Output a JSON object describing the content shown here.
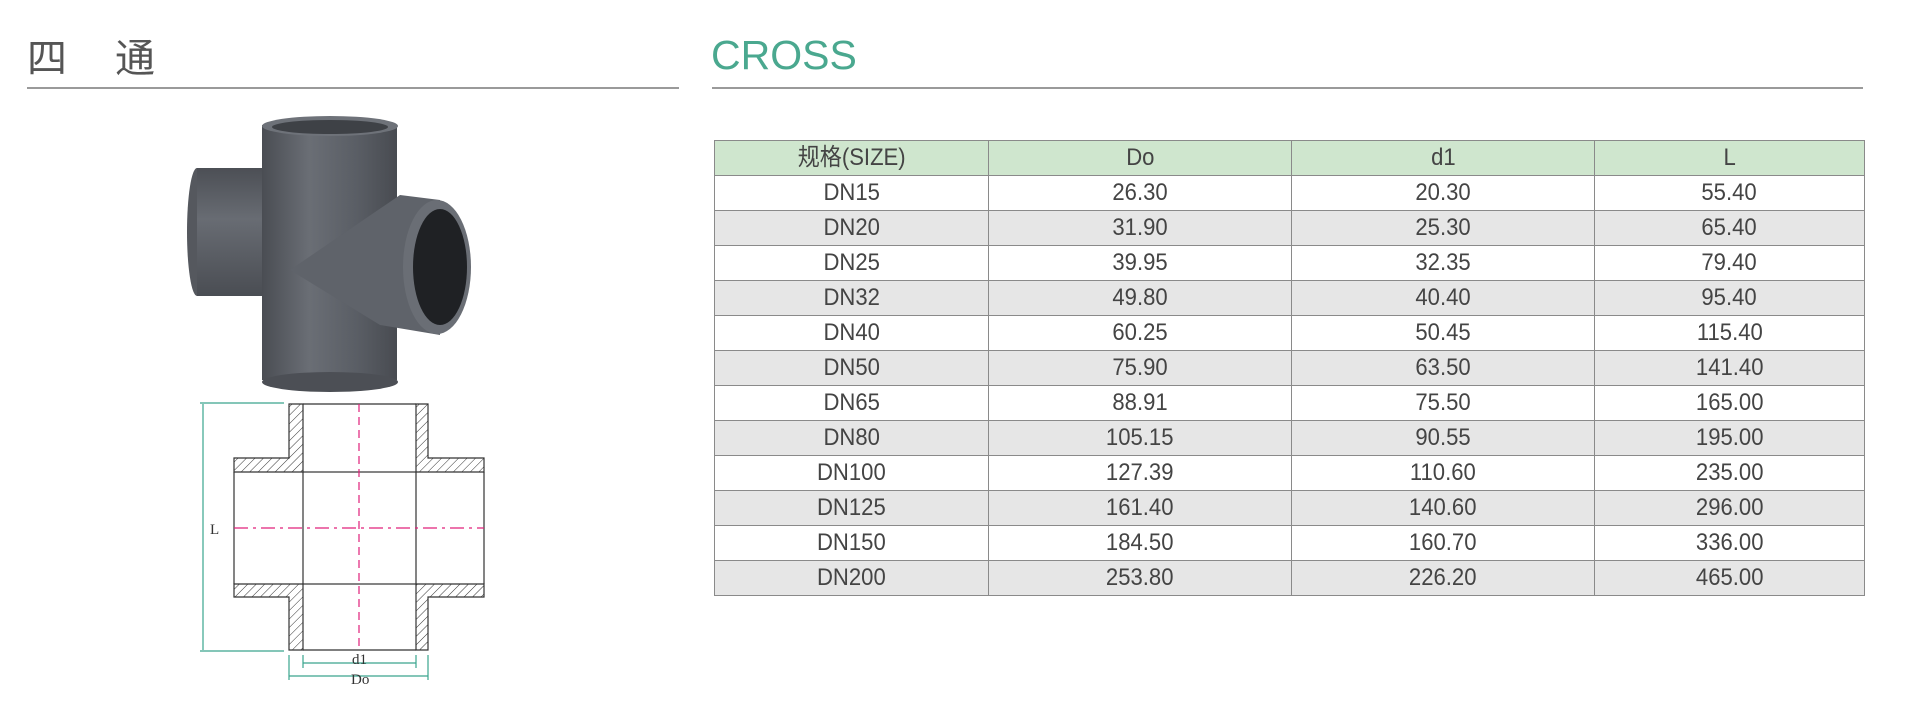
{
  "header": {
    "title_cn": [
      "四",
      "通"
    ],
    "title_en": "CROSS",
    "accent": "#4aa88f"
  },
  "drawing": {
    "label_L": "L",
    "label_d1": "d1",
    "label_Do": "Do"
  },
  "table": {
    "columns": [
      "规格(SIZE)",
      "Do",
      "d1",
      "L"
    ],
    "header_bg": "#cfe6ce",
    "rows": [
      [
        "DN15",
        "26.30",
        "20.30",
        "55.40"
      ],
      [
        "DN20",
        "31.90",
        "25.30",
        "65.40"
      ],
      [
        "DN25",
        "39.95",
        "32.35",
        "79.40"
      ],
      [
        "DN32",
        "49.80",
        "40.40",
        "95.40"
      ],
      [
        "DN40",
        "60.25",
        "50.45",
        "115.40"
      ],
      [
        "DN50",
        "75.90",
        "63.50",
        "141.40"
      ],
      [
        "DN65",
        "88.91",
        "75.50",
        "165.00"
      ],
      [
        "DN80",
        "105.15",
        "90.55",
        "195.00"
      ],
      [
        "DN100",
        "127.39",
        "110.60",
        "235.00"
      ],
      [
        "DN125",
        "161.40",
        "140.60",
        "296.00"
      ],
      [
        "DN150",
        "184.50",
        "160.70",
        "336.00"
      ],
      [
        "DN200",
        "253.80",
        "226.20",
        "465.00"
      ]
    ]
  }
}
